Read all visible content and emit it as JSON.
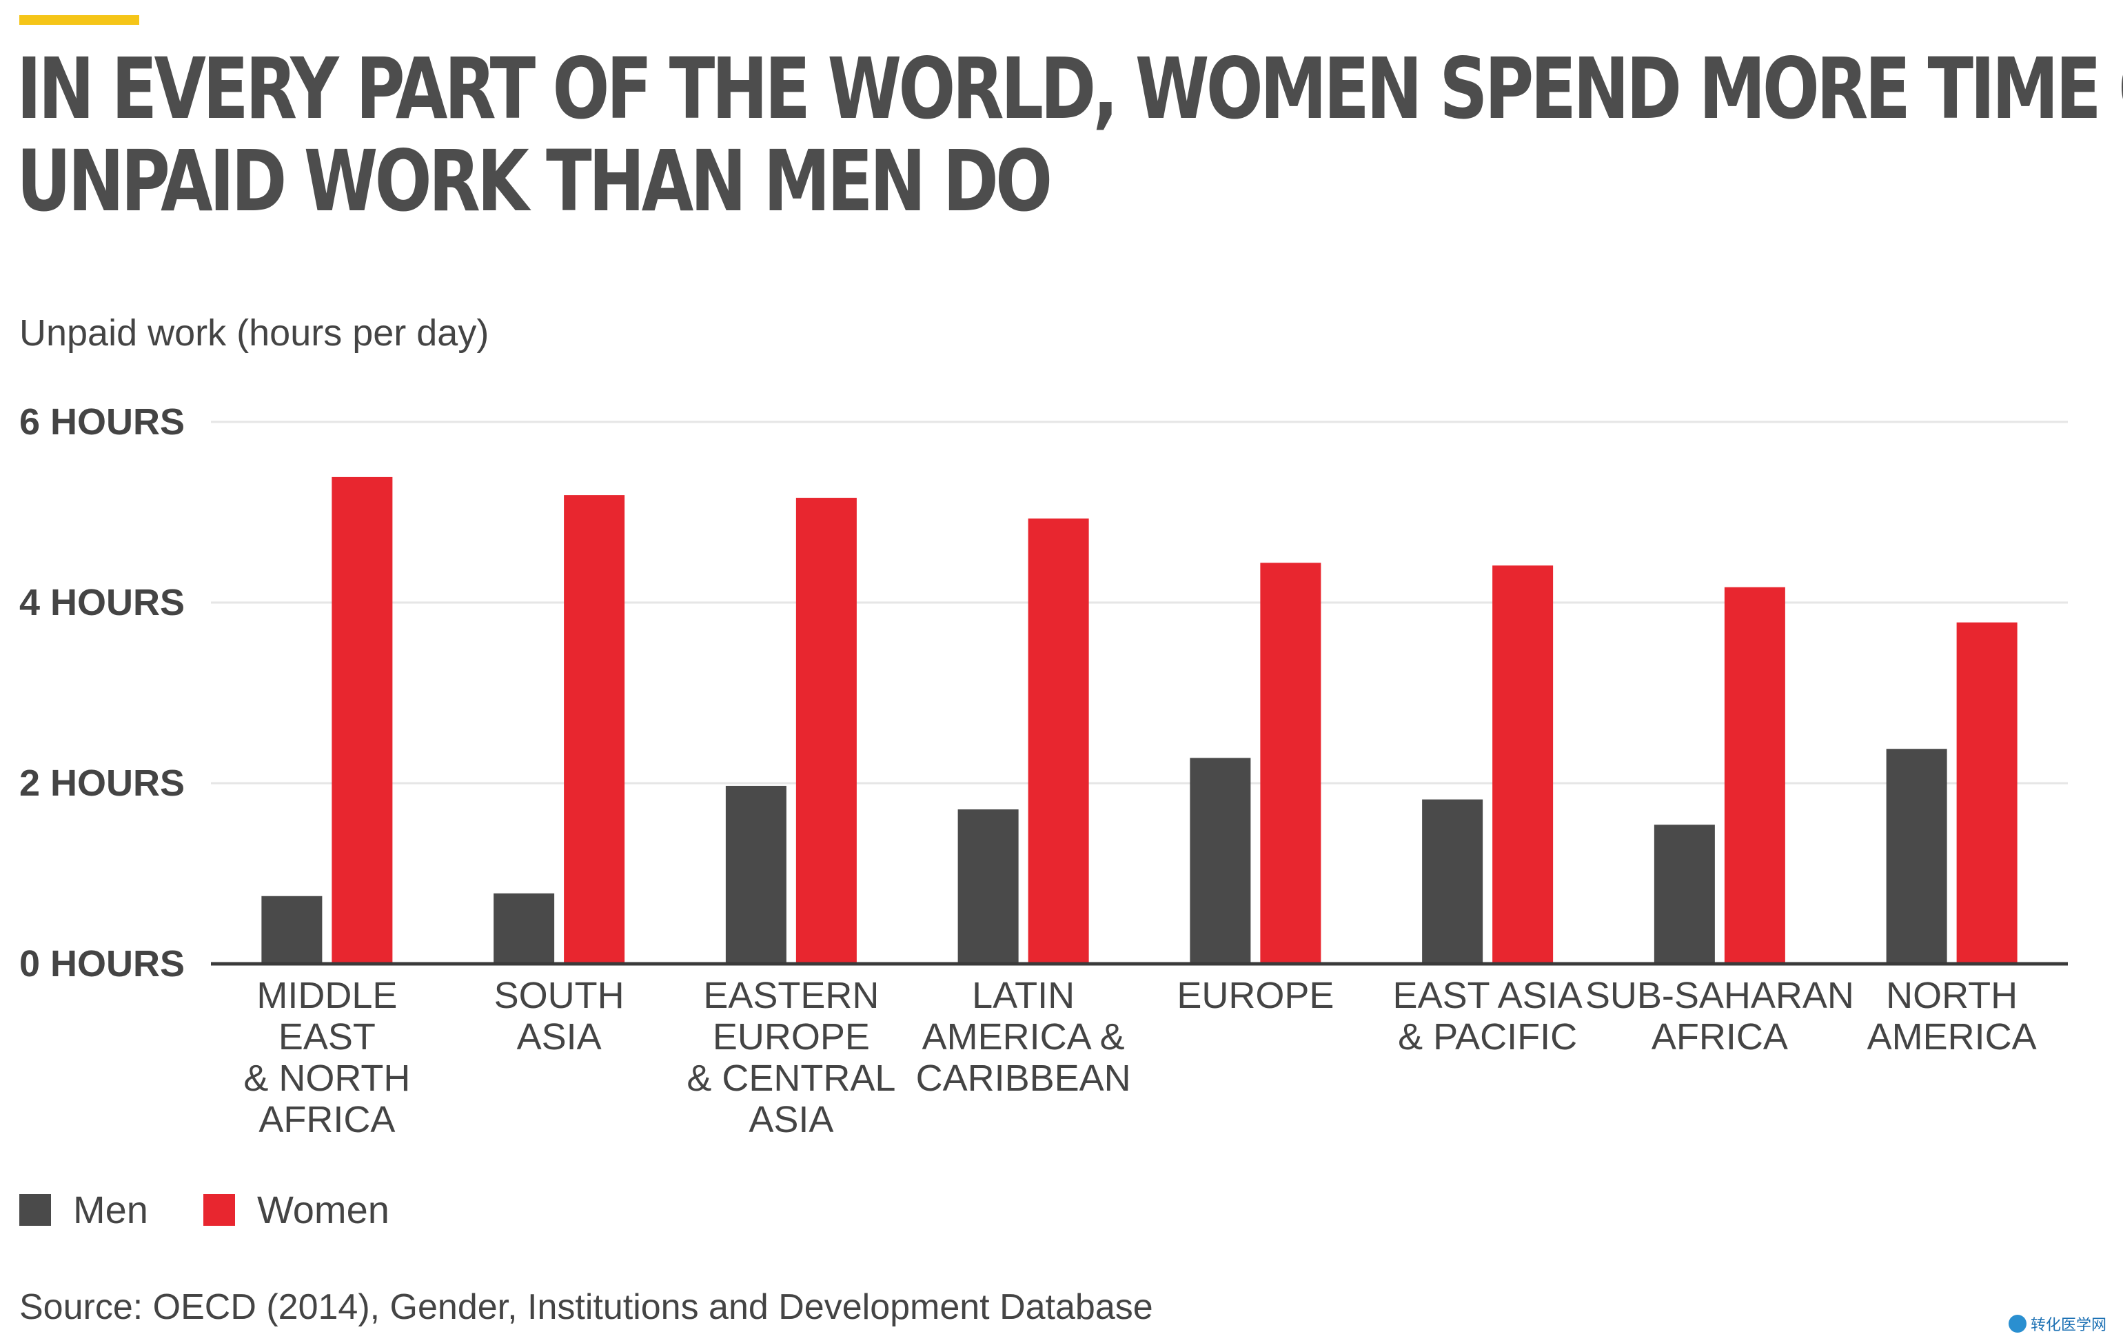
{
  "colors": {
    "accent": "#f5c518",
    "men": "#4a4a4a",
    "women": "#e8262f",
    "grid": "#e6e6e6",
    "axis": "#3a3a3a"
  },
  "title_lines": [
    "IN EVERY PART OF THE WORLD, WOMEN SPEND MORE TIME ON",
    "UNPAID WORK THAN MEN DO"
  ],
  "source": "Source: OECD (2014), Gender, Institutions and Development Database",
  "watermark": "转化医学网",
  "chart_data": {
    "type": "bar",
    "title": "IN EVERY PART OF THE WORLD, WOMEN SPEND MORE TIME ON UNPAID WORK THAN MEN DO",
    "ylabel": "Unpaid work (hours per day)",
    "xlabel": "",
    "ylim": [
      0,
      6
    ],
    "yticks": [
      {
        "value": 0,
        "label": "0 HOURS"
      },
      {
        "value": 2,
        "label": "2 HOURS"
      },
      {
        "value": 4,
        "label": "4 HOURS"
      },
      {
        "value": 6,
        "label": "6 HOURS"
      }
    ],
    "grid": true,
    "legend_position": "bottom-left",
    "categories": [
      [
        "MIDDLE",
        "EAST",
        "& NORTH",
        "AFRICA"
      ],
      [
        "SOUTH",
        "ASIA"
      ],
      [
        "EASTERN",
        "EUROPE",
        "& CENTRAL",
        "ASIA"
      ],
      [
        "LATIN",
        "AMERICA &",
        "CARIBBEAN"
      ],
      [
        "EUROPE"
      ],
      [
        "EAST ASIA",
        "& PACIFIC"
      ],
      [
        "SUB-SAHARAN",
        "AFRICA"
      ],
      [
        "NORTH",
        "AMERICA"
      ]
    ],
    "series": [
      {
        "name": "Men",
        "values": [
          0.75,
          0.78,
          1.97,
          1.71,
          2.28,
          1.82,
          1.54,
          2.38
        ]
      },
      {
        "name": "Women",
        "values": [
          5.39,
          5.19,
          5.16,
          4.93,
          4.44,
          4.41,
          4.17,
          3.78
        ]
      }
    ]
  }
}
